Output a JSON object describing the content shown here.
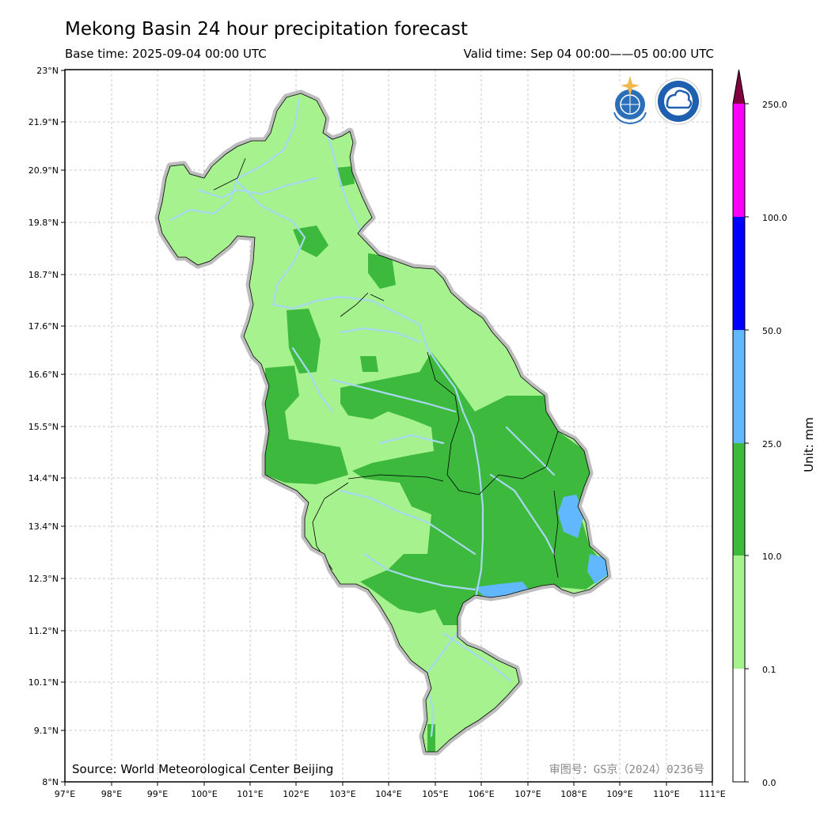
{
  "header": {
    "title": "Mekong Basin 24 hour precipitation forecast",
    "base_time": "Base time: 2025-09-04 00:00 UTC",
    "valid_time": "Valid time: Sep 04 00:00——05 00:00 UTC"
  },
  "axes": {
    "lat_labels": [
      "23°N",
      "21.9°N",
      "20.9°N",
      "19.8°N",
      "18.7°N",
      "17.6°N",
      "16.6°N",
      "15.5°N",
      "14.4°N",
      "13.4°N",
      "12.3°N",
      "11.2°N",
      "10.1°N",
      "9.1°N",
      "8°N"
    ],
    "lon_labels": [
      "97°E",
      "98°E",
      "99°E",
      "100°E",
      "101°E",
      "102°E",
      "103°E",
      "104°E",
      "105°E",
      "106°E",
      "107°E",
      "108°E",
      "109°E",
      "110°E",
      "111°E"
    ]
  },
  "footer": {
    "source": "Source: World Meteorological Center Beijing",
    "approval": "审图号：GS京（2024）0236号"
  },
  "colorbar": {
    "unit_label": "Unit: mm",
    "levels": [
      "0.0",
      "0.1",
      "10.0",
      "25.0",
      "50.0",
      "100.0",
      "250.0"
    ],
    "colors": [
      "#ffffff",
      "#a6f28f",
      "#3dba3d",
      "#61b8ff",
      "#0000ff",
      "#fa00fa",
      "#800040"
    ]
  },
  "logos": [
    "wmo-logo",
    "cma-logo"
  ],
  "map_colors": {
    "light_green": "#a6f28f",
    "green": "#3dba3d",
    "blue": "#61b8ff",
    "river": "#a8d8f0",
    "halo": "#bdbdbd",
    "grid": "#bbbbbb"
  }
}
